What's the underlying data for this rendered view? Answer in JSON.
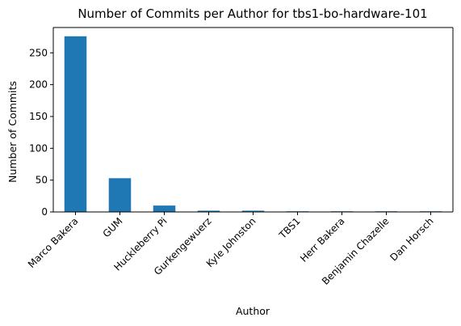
{
  "chart_data": {
    "type": "bar",
    "title": "Number of Commits per Author for tbs1-bo-hardware-101",
    "xlabel": "Author",
    "ylabel": "Number of Commits",
    "categories": [
      "Marco Bakera",
      "GUM",
      "Huckleberry Pi",
      "Gurkengewuerz",
      "Kyle Johnston",
      "TBS1",
      "Herr Bakera",
      "Benjamin Chazelle",
      "Dan Horsch"
    ],
    "values": [
      276,
      53,
      10,
      2,
      2,
      1,
      1,
      1,
      1
    ],
    "yticks": [
      0,
      50,
      100,
      150,
      200,
      250
    ],
    "ylim": [
      0,
      289.8
    ],
    "bar_color": "#1f77b4",
    "grid": false,
    "legend": "none"
  }
}
